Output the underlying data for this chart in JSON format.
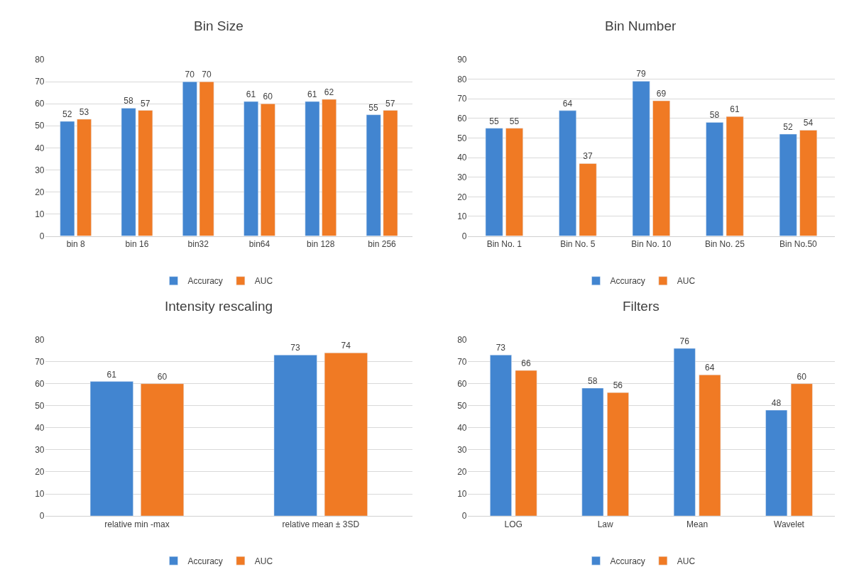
{
  "chart_data": [
    {
      "type": "bar",
      "title": "Bin Size",
      "categories": [
        "bin 8",
        "bin 16",
        "bin32",
        "bin64",
        "bin 128",
        "bin 256"
      ],
      "series": [
        {
          "name": "Accuracy",
          "color": "#4285d0",
          "values": [
            52,
            58,
            70,
            61,
            61,
            55
          ]
        },
        {
          "name": "AUC",
          "color": "#f07a24",
          "values": [
            53,
            57,
            70,
            60,
            62,
            57
          ]
        }
      ],
      "ylim": [
        0,
        80
      ],
      "yticks": [
        0,
        10,
        20,
        30,
        40,
        50,
        60,
        70,
        80
      ],
      "grid": "y",
      "legend": "bottom",
      "data_labels": true
    },
    {
      "type": "bar",
      "title": "Bin Number",
      "categories": [
        "Bin No. 1",
        "Bin No. 5",
        "Bin No. 10",
        "Bin No. 25",
        "Bin No.50"
      ],
      "series": [
        {
          "name": "Accuracy",
          "color": "#4285d0",
          "values": [
            55,
            64,
            79,
            58,
            52
          ]
        },
        {
          "name": "AUC",
          "color": "#f07a24",
          "values": [
            55,
            37,
            69,
            61,
            54
          ]
        }
      ],
      "ylim": [
        0,
        90
      ],
      "yticks": [
        0,
        10,
        20,
        30,
        40,
        50,
        60,
        70,
        80,
        90
      ],
      "grid": "y",
      "legend": "bottom",
      "data_labels": true
    },
    {
      "type": "bar",
      "title": "Intensity rescaling",
      "categories": [
        "relative min -max",
        "relative mean ± 3SD"
      ],
      "series": [
        {
          "name": "Accuracy",
          "color": "#4285d0",
          "values": [
            61,
            73
          ]
        },
        {
          "name": "AUC",
          "color": "#f07a24",
          "values": [
            60,
            74
          ]
        }
      ],
      "ylim": [
        0,
        80
      ],
      "yticks": [
        0,
        10,
        20,
        30,
        40,
        50,
        60,
        70,
        80
      ],
      "grid": "y",
      "legend": "bottom",
      "data_labels": true
    },
    {
      "type": "bar",
      "title": "Filters",
      "categories": [
        "LOG",
        "Law",
        "Mean",
        "Wavelet"
      ],
      "series": [
        {
          "name": "Accuracy",
          "color": "#4285d0",
          "values": [
            73,
            58,
            76,
            48
          ]
        },
        {
          "name": "AUC",
          "color": "#f07a24",
          "values": [
            66,
            56,
            64,
            60
          ]
        }
      ],
      "ylim": [
        0,
        80
      ],
      "yticks": [
        0,
        10,
        20,
        30,
        40,
        50,
        60,
        70,
        80
      ],
      "grid": "y",
      "legend": "bottom",
      "data_labels": true
    }
  ]
}
